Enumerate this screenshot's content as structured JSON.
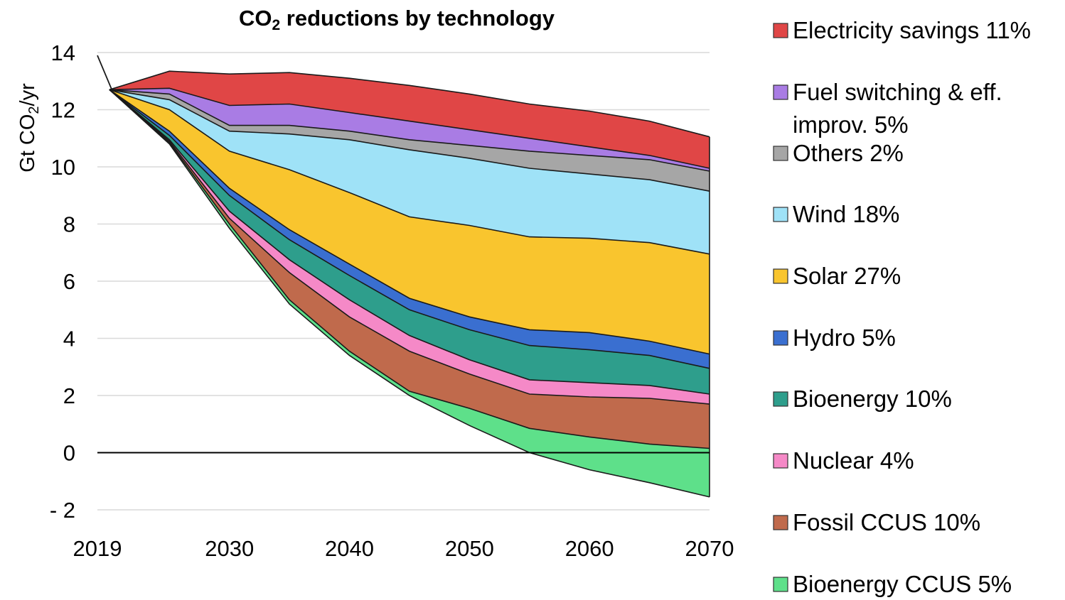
{
  "chart_data": {
    "type": "area",
    "title_main": "CO",
    "title_sub": "2",
    "title_rest": " reductions by technology",
    "ylabel_main": "Gt CO",
    "ylabel_sub": "2",
    "ylabel_rest": "/yr",
    "xlabel": "",
    "x": [
      2019,
      2020,
      2025,
      2030,
      2035,
      2040,
      2045,
      2050,
      2055,
      2060,
      2065,
      2070
    ],
    "x_ticks": [
      2019,
      2030,
      2040,
      2050,
      2060,
      2070
    ],
    "x_tick_labels": [
      "2019",
      "2030",
      "2040",
      "2050",
      "2060",
      "2070"
    ],
    "y_ticks": [
      14,
      12,
      10,
      8,
      6,
      4,
      2,
      0,
      -2
    ],
    "y_tick_labels": [
      "14",
      "12",
      "10",
      "8",
      "6",
      "4",
      "2",
      "0",
      "- 2"
    ],
    "xlim": [
      2019,
      2070
    ],
    "ylim": [
      -2,
      14
    ],
    "grid": true,
    "legend_position": "right",
    "zero_line": true,
    "pre_line": {
      "x": [
        2019,
        2020.2
      ],
      "y": [
        13.9,
        12.7
      ]
    },
    "boundary_order": "Each series gives the top edge of its band (cumulative, Gt CO2/yr); its bottom edge is the top of the next series in the list; the last series is bounded below by the remaining-emissions line.",
    "series": [
      {
        "name": "Electricity savings 11%",
        "color": "#e04646",
        "values": [
          null,
          12.7,
          13.35,
          13.25,
          13.3,
          13.1,
          12.85,
          12.55,
          12.2,
          11.95,
          11.6,
          11.05
        ]
      },
      {
        "name": "Fuel switching & eff. improv. 5%",
        "color": "#a97ce4",
        "values": [
          null,
          12.7,
          12.75,
          12.15,
          12.2,
          11.9,
          11.6,
          11.3,
          11.0,
          10.7,
          10.4,
          9.95
        ]
      },
      {
        "name": "Others 2%",
        "color": "#a6a6a6",
        "values": [
          null,
          12.7,
          12.55,
          11.45,
          11.45,
          11.25,
          10.95,
          10.75,
          10.55,
          10.4,
          10.25,
          9.85
        ]
      },
      {
        "name": "Wind 18%",
        "color": "#9fe2f7",
        "values": [
          null,
          12.7,
          12.35,
          11.25,
          11.15,
          10.95,
          10.6,
          10.3,
          9.95,
          9.75,
          9.55,
          9.15
        ]
      },
      {
        "name": "Solar 27%",
        "color": "#f9c52e",
        "values": [
          null,
          12.7,
          12.0,
          10.55,
          9.9,
          9.1,
          8.25,
          7.95,
          7.55,
          7.5,
          7.35,
          6.95
        ]
      },
      {
        "name": "Hydro 5%",
        "color": "#3a6fd0",
        "values": [
          null,
          12.7,
          11.25,
          9.25,
          7.8,
          6.6,
          5.4,
          4.75,
          4.3,
          4.2,
          3.9,
          3.45
        ]
      },
      {
        "name": "Bioenergy 10%",
        "color": "#2e9e8c",
        "values": [
          null,
          12.7,
          11.1,
          9.0,
          7.45,
          6.2,
          5.0,
          4.3,
          3.75,
          3.6,
          3.4,
          2.95
        ]
      },
      {
        "name": "Nuclear 4%",
        "color": "#f589c7",
        "values": [
          null,
          12.7,
          10.95,
          8.45,
          6.75,
          5.35,
          4.1,
          3.25,
          2.55,
          2.45,
          2.35,
          2.05
        ]
      },
      {
        "name": "Fossil CCUS 10%",
        "color": "#c06a4c",
        "values": [
          null,
          12.7,
          10.9,
          8.2,
          6.3,
          4.75,
          3.55,
          2.75,
          2.05,
          1.95,
          1.9,
          1.7
        ]
      },
      {
        "name": "Bioenergy CCUS 5%",
        "color": "#5ee08a",
        "values": [
          null,
          12.7,
          10.85,
          8.0,
          5.35,
          3.55,
          2.15,
          1.55,
          0.85,
          0.55,
          0.3,
          0.15
        ]
      }
    ],
    "remaining_emissions": [
      null,
      12.7,
      10.8,
      7.85,
      5.2,
      3.4,
      2.0,
      0.95,
      0.0,
      -0.6,
      -1.05,
      -1.55
    ],
    "legend_items": [
      {
        "lines": [
          "Electricity savings 11%"
        ],
        "color": "#e04646"
      },
      {
        "lines": [
          "Fuel switching & eff.",
          "improv. 5%"
        ],
        "color": "#a97ce4"
      },
      {
        "lines": [
          "Others 2%"
        ],
        "color": "#a6a6a6"
      },
      {
        "lines": [
          "Wind 18%"
        ],
        "color": "#9fe2f7"
      },
      {
        "lines": [
          "Solar 27%"
        ],
        "color": "#f9c52e"
      },
      {
        "lines": [
          "Hydro 5%"
        ],
        "color": "#3a6fd0"
      },
      {
        "lines": [
          "Bioenergy 10%"
        ],
        "color": "#2e9e8c"
      },
      {
        "lines": [
          "Nuclear 4%"
        ],
        "color": "#f589c7"
      },
      {
        "lines": [
          "Fossil CCUS 10%"
        ],
        "color": "#c06a4c"
      },
      {
        "lines": [
          "Bioenergy CCUS 5%"
        ],
        "color": "#5ee08a"
      }
    ]
  }
}
